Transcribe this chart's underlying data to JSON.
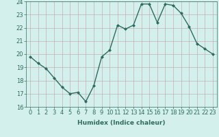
{
  "x": [
    0,
    1,
    2,
    3,
    4,
    5,
    6,
    7,
    8,
    9,
    10,
    11,
    12,
    13,
    14,
    15,
    16,
    17,
    18,
    19,
    20,
    21,
    22,
    23
  ],
  "y": [
    19.8,
    19.3,
    18.9,
    18.2,
    17.5,
    17.0,
    17.1,
    16.4,
    17.6,
    19.8,
    20.3,
    22.2,
    21.9,
    22.2,
    23.8,
    23.8,
    22.4,
    23.8,
    23.7,
    23.1,
    22.1,
    20.8,
    20.4,
    20.0
  ],
  "line_color": "#2e6b5e",
  "marker": "D",
  "markersize": 2.0,
  "linewidth": 1.0,
  "bg_color": "#d4f0ec",
  "grid_color_h": "#c4b0b0",
  "grid_color_v": "#c4b0b0",
  "xlabel": "Humidex (Indice chaleur)",
  "ylim": [
    16,
    24
  ],
  "yticks": [
    16,
    17,
    18,
    19,
    20,
    21,
    22,
    23,
    24
  ],
  "xticks": [
    0,
    1,
    2,
    3,
    4,
    5,
    6,
    7,
    8,
    9,
    10,
    11,
    12,
    13,
    14,
    15,
    16,
    17,
    18,
    19,
    20,
    21,
    22,
    23
  ],
  "xlabel_fontsize": 6.5,
  "tick_fontsize": 6.0
}
